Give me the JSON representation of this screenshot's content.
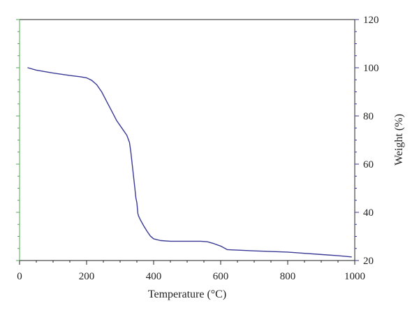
{
  "chart_data": {
    "type": "line",
    "title": "",
    "xlabel": "Temperature (°C)",
    "ylabel": "Weight (%)",
    "xlim": [
      0,
      1000
    ],
    "ylim": [
      20,
      120
    ],
    "x_ticks": [
      0,
      200,
      400,
      600,
      800,
      1000
    ],
    "y_ticks": [
      20,
      40,
      60,
      80,
      100,
      120
    ],
    "y_axis_side": "right",
    "grid": false,
    "legend": "none",
    "colors": {
      "line": "#3a3a96",
      "frame": "#222222",
      "left_axis": "#4caf50",
      "right_axis_ticks": "#3a3a96"
    },
    "series": [
      {
        "x": [
          25,
          50,
          100,
          150,
          180,
          200,
          215,
          230,
          245,
          260,
          275,
          290,
          300,
          310,
          320,
          328,
          332,
          336,
          340,
          344,
          347,
          350,
          352,
          353,
          355,
          360,
          370,
          380,
          390,
          400,
          420,
          450,
          500,
          540,
          560,
          580,
          600,
          620,
          700,
          800,
          850,
          900,
          950,
          990
        ],
        "y": [
          100,
          99,
          97.8,
          96.8,
          96.3,
          95.8,
          94.8,
          93,
          90,
          86,
          82,
          78,
          76,
          74,
          72,
          69,
          65,
          60,
          55,
          50,
          46,
          44,
          41,
          39.5,
          38.5,
          37,
          34.5,
          32.2,
          30.2,
          29,
          28.3,
          28,
          28,
          28,
          27.8,
          27,
          26,
          24.5,
          24,
          23.5,
          23,
          22.5,
          22,
          21.5
        ]
      }
    ]
  }
}
